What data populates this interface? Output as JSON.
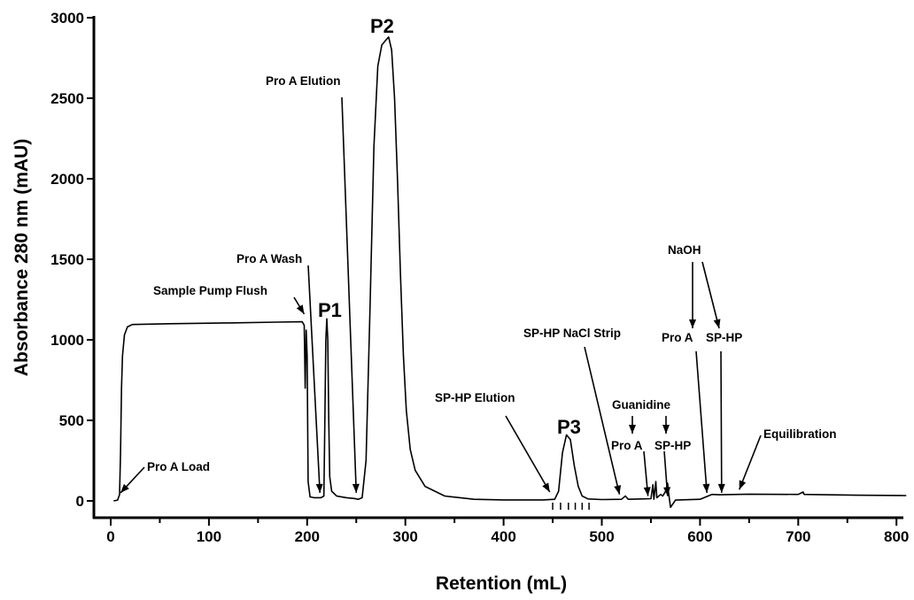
{
  "chart_data": {
    "type": "line",
    "title": "",
    "xlabel": "Retention (mL)",
    "ylabel": "Absorbance 280 nm (mAU)",
    "xlim": [
      0,
      810
    ],
    "ylim": [
      0,
      3000
    ],
    "x_ticks": [
      0,
      100,
      200,
      300,
      400,
      500,
      600,
      700,
      800
    ],
    "y_ticks": [
      0,
      500,
      1000,
      1500,
      2000,
      2500,
      3000
    ],
    "grid": false,
    "legend": "none",
    "line_color": "#000000",
    "series": [
      {
        "points": [
          [
            3,
            0
          ],
          [
            7,
            5
          ],
          [
            9,
            40
          ],
          [
            10,
            300
          ],
          [
            11,
            700
          ],
          [
            12,
            900
          ],
          [
            14,
            1030
          ],
          [
            17,
            1080
          ],
          [
            22,
            1095
          ],
          [
            60,
            1100
          ],
          [
            120,
            1105
          ],
          [
            170,
            1110
          ],
          [
            195,
            1112
          ],
          [
            197,
            1090
          ],
          [
            198,
            700
          ],
          [
            199,
            1060
          ],
          [
            200,
            900
          ],
          [
            201,
            120
          ],
          [
            203,
            25
          ],
          [
            207,
            20
          ],
          [
            214,
            20
          ],
          [
            217,
            30
          ],
          [
            218,
            500
          ],
          [
            219,
            1000
          ],
          [
            220,
            1130
          ],
          [
            221,
            1000
          ],
          [
            222,
            500
          ],
          [
            223,
            150
          ],
          [
            225,
            60
          ],
          [
            230,
            30
          ],
          [
            240,
            20
          ],
          [
            248,
            15
          ],
          [
            252,
            10
          ],
          [
            256,
            20
          ],
          [
            260,
            250
          ],
          [
            264,
            1200
          ],
          [
            268,
            2200
          ],
          [
            272,
            2700
          ],
          [
            276,
            2830
          ],
          [
            280,
            2860
          ],
          [
            283,
            2880
          ],
          [
            286,
            2800
          ],
          [
            289,
            2500
          ],
          [
            292,
            2000
          ],
          [
            295,
            1400
          ],
          [
            298,
            900
          ],
          [
            301,
            560
          ],
          [
            305,
            320
          ],
          [
            310,
            190
          ],
          [
            320,
            90
          ],
          [
            340,
            30
          ],
          [
            370,
            10
          ],
          [
            400,
            6
          ],
          [
            440,
            6
          ],
          [
            452,
            10
          ],
          [
            456,
            60
          ],
          [
            460,
            300
          ],
          [
            464,
            410
          ],
          [
            468,
            380
          ],
          [
            472,
            220
          ],
          [
            476,
            90
          ],
          [
            480,
            30
          ],
          [
            486,
            12
          ],
          [
            500,
            8
          ],
          [
            520,
            10
          ],
          [
            524,
            30
          ],
          [
            527,
            10
          ],
          [
            540,
            12
          ],
          [
            550,
            14
          ],
          [
            552,
            100
          ],
          [
            553,
            10
          ],
          [
            555,
            120
          ],
          [
            556,
            20
          ],
          [
            560,
            40
          ],
          [
            562,
            30
          ],
          [
            565,
            60
          ],
          [
            567,
            110
          ],
          [
            568,
            50
          ],
          [
            570,
            -40
          ],
          [
            575,
            5
          ],
          [
            600,
            10
          ],
          [
            612,
            40
          ],
          [
            620,
            38
          ],
          [
            650,
            42
          ],
          [
            700,
            40
          ],
          [
            705,
            55
          ],
          [
            706,
            40
          ],
          [
            760,
            35
          ],
          [
            810,
            33
          ]
        ]
      }
    ],
    "fraction_tick_marks_x": [
      450,
      458,
      466,
      473,
      480,
      487
    ],
    "annotations": [
      {
        "text": "Pro A Load",
        "arrow_to": [
          10,
          50
        ]
      },
      {
        "text": "Sample Pump Flush",
        "arrow_to": [
          197,
          1160
        ]
      },
      {
        "text": "Pro A Wash",
        "arrow_to": [
          213,
          50
        ]
      },
      {
        "text": "Pro A Elution",
        "arrow_to": [
          250,
          50
        ]
      },
      {
        "text": "SP-HP Elution",
        "arrow_to": [
          447,
          55
        ]
      },
      {
        "text": "SP-HP NaCl Strip",
        "arrow_to": [
          518,
          40
        ]
      },
      {
        "text": "Guanidine"
      },
      {
        "text": "Pro A",
        "arrow_to": [
          547,
          30
        ]
      },
      {
        "text": "SP-HP",
        "arrow_to": [
          567,
          30
        ]
      },
      {
        "text": "NaOH"
      },
      {
        "text": "Pro A",
        "arrow_to": [
          607,
          50
        ]
      },
      {
        "text": "SP-HP",
        "arrow_to": [
          622,
          50
        ]
      },
      {
        "text": "Equilibration",
        "arrow_to": [
          640,
          70
        ]
      },
      {
        "text": "P1",
        "peak_label": true
      },
      {
        "text": "P2",
        "peak_label": true
      },
      {
        "text": "P3",
        "peak_label": true
      }
    ]
  }
}
